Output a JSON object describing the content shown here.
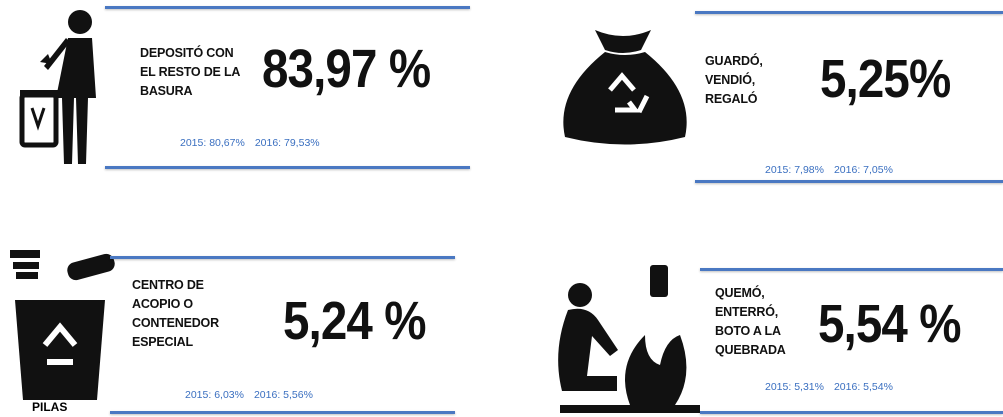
{
  "panels": [
    {
      "label": [
        "DEPOSITÓ CON",
        "EL RESTO DE LA",
        "BASURA"
      ],
      "value": "83,97 %",
      "history": [
        "2015: 80,67%",
        "2016: 79,53%"
      ]
    },
    {
      "label": [
        "GUARDÓ,",
        "VENDIÓ,",
        "REGALÓ"
      ],
      "value": "5,25%",
      "history": [
        "2015: 7,98%",
        "2016: 7,05%"
      ]
    },
    {
      "label": [
        "CENTRO DE",
        "ACOPIO O",
        "CONTENEDOR",
        "ESPECIAL"
      ],
      "value": "5,24 %",
      "history": [
        "2015: 6,03%",
        "2016: 5,56%"
      ]
    },
    {
      "label": [
        "QUEMÓ,",
        "ENTERRÓ,",
        "BOTO A LA",
        "QUEBRADA"
      ],
      "value": "5,54 %",
      "history": [
        "2015: 5,31%",
        "2016: 5,54%"
      ]
    }
  ],
  "icon_caption": "PILAS"
}
